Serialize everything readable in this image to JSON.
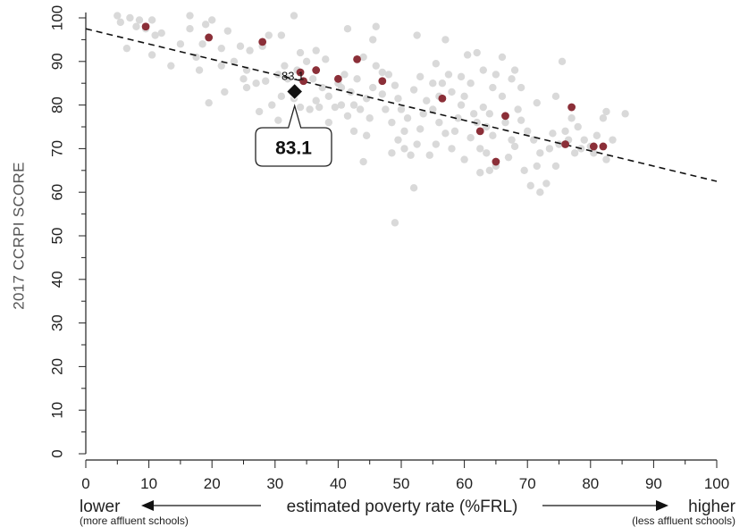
{
  "chart_data": {
    "type": "scatter",
    "ylabel": "2017 CCRPI SCORE",
    "xlabel": "estimated poverty rate (%FRL)",
    "x_low_label": "lower",
    "x_high_label": "higher",
    "x_low_sub": "(more affluent schools)",
    "x_high_sub": "(less affluent schools)",
    "xlim": [
      0,
      100
    ],
    "ylim": [
      0,
      100
    ],
    "x_ticks": [
      "0",
      "10",
      "20",
      "30",
      "40",
      "50",
      "60",
      "70",
      "80",
      "90",
      "100"
    ],
    "y_ticks": [
      "0",
      "10",
      "20",
      "30",
      "40",
      "50",
      "60",
      "70",
      "80",
      "90",
      "100"
    ],
    "grid": false,
    "colors": {
      "background_points": "#d9d9d9",
      "highlight_points": "#8b2f38",
      "trend_line": "#111111",
      "focus_marker": "#111111"
    },
    "trend_line": {
      "x": [
        0,
        100
      ],
      "y": [
        97.5,
        62.5
      ],
      "style": "dashed"
    },
    "background_points": [
      [
        5,
        100.5
      ],
      [
        7,
        100
      ],
      [
        8.5,
        99.5
      ],
      [
        10.5,
        99.5
      ],
      [
        5.5,
        99
      ],
      [
        8,
        98
      ],
      [
        9.5,
        97.5
      ],
      [
        11,
        96
      ],
      [
        6.5,
        93
      ],
      [
        10.5,
        91.5
      ],
      [
        13.5,
        89
      ],
      [
        16.5,
        100.5
      ],
      [
        20,
        99.5
      ],
      [
        19,
        98.5
      ],
      [
        16.5,
        97.5
      ],
      [
        22.5,
        97
      ],
      [
        18.5,
        94
      ],
      [
        21.5,
        93
      ],
      [
        15,
        94
      ],
      [
        17.5,
        91
      ],
      [
        18,
        88
      ],
      [
        21.5,
        89
      ],
      [
        23.5,
        90
      ],
      [
        26,
        92.5
      ],
      [
        24.5,
        93.5
      ],
      [
        28,
        93.5
      ],
      [
        29,
        96
      ],
      [
        31,
        96
      ],
      [
        33,
        100.5
      ],
      [
        25.5,
        88
      ],
      [
        25,
        86
      ],
      [
        25.5,
        84
      ],
      [
        27,
        85
      ],
      [
        28.5,
        85.5
      ],
      [
        30.5,
        87
      ],
      [
        31.5,
        89
      ],
      [
        33.5,
        88
      ],
      [
        35,
        90
      ],
      [
        36,
        86
      ],
      [
        37.5,
        84
      ],
      [
        36.5,
        81
      ],
      [
        35.5,
        79
      ],
      [
        34,
        79.5
      ],
      [
        33,
        81.5
      ],
      [
        38.5,
        82
      ],
      [
        39.5,
        79.5
      ],
      [
        40.5,
        84
      ],
      [
        41,
        87
      ],
      [
        41.5,
        97.5
      ],
      [
        44,
        91
      ],
      [
        43,
        86
      ],
      [
        42,
        83
      ],
      [
        42.5,
        80
      ],
      [
        41.5,
        77.5
      ],
      [
        43.5,
        79
      ],
      [
        44.5,
        81.5
      ],
      [
        45.5,
        84
      ],
      [
        46,
        89
      ],
      [
        46,
        98
      ],
      [
        48,
        87
      ],
      [
        47,
        82.5
      ],
      [
        45,
        77
      ],
      [
        44.5,
        73
      ],
      [
        47.5,
        79
      ],
      [
        48.5,
        76
      ],
      [
        49,
        84.5
      ],
      [
        49.5,
        81.5
      ],
      [
        50,
        79
      ],
      [
        51,
        77
      ],
      [
        50.5,
        74
      ],
      [
        49.5,
        72
      ],
      [
        48.5,
        69
      ],
      [
        50.5,
        70
      ],
      [
        51.5,
        68.5
      ],
      [
        52.5,
        71
      ],
      [
        53,
        74.5
      ],
      [
        53.5,
        78
      ],
      [
        54,
        81
      ],
      [
        52,
        83.5
      ],
      [
        53,
        86.5
      ],
      [
        55,
        85
      ],
      [
        55.5,
        89.5
      ],
      [
        56.5,
        85
      ],
      [
        57.5,
        87
      ],
      [
        56,
        82
      ],
      [
        55,
        79
      ],
      [
        56,
        76
      ],
      [
        57,
        73.5
      ],
      [
        55.5,
        71
      ],
      [
        54.5,
        68.5
      ],
      [
        58,
        70
      ],
      [
        58.5,
        74
      ],
      [
        59,
        77
      ],
      [
        59.5,
        80
      ],
      [
        58,
        83
      ],
      [
        59.5,
        86.5
      ],
      [
        60.5,
        91.5
      ],
      [
        61,
        85
      ],
      [
        60,
        82
      ],
      [
        61.5,
        78
      ],
      [
        62,
        76
      ],
      [
        61,
        72.5
      ],
      [
        60,
        67.5
      ],
      [
        62.5,
        70
      ],
      [
        63,
        79.5
      ],
      [
        63.5,
        75
      ],
      [
        64,
        78
      ],
      [
        64.5,
        84
      ],
      [
        65,
        87
      ],
      [
        64.5,
        73
      ],
      [
        63.5,
        69
      ],
      [
        65,
        66
      ],
      [
        64,
        65
      ],
      [
        62.5,
        64.5
      ],
      [
        66.5,
        76
      ],
      [
        67.5,
        72
      ],
      [
        68,
        70.5
      ],
      [
        67,
        68
      ],
      [
        66,
        82
      ],
      [
        67.5,
        86
      ],
      [
        69,
        76.5
      ],
      [
        70,
        74
      ],
      [
        71,
        72
      ],
      [
        72,
        69
      ],
      [
        70.5,
        61.5
      ],
      [
        72,
        60
      ],
      [
        73,
        62
      ],
      [
        71.5,
        66
      ],
      [
        73.5,
        70
      ],
      [
        74,
        73.5
      ],
      [
        75,
        71
      ],
      [
        76,
        74
      ],
      [
        77,
        77
      ],
      [
        75.5,
        90
      ],
      [
        74.5,
        82
      ],
      [
        76.5,
        72
      ],
      [
        77.5,
        69
      ],
      [
        78,
        75
      ],
      [
        79,
        72
      ],
      [
        80,
        70.5
      ],
      [
        81,
        73
      ],
      [
        82,
        77
      ],
      [
        82.5,
        78.5
      ],
      [
        83.5,
        72
      ],
      [
        82.5,
        67.5
      ],
      [
        85.5,
        78
      ],
      [
        69,
        84
      ],
      [
        71.5,
        80.5
      ],
      [
        68.5,
        79
      ],
      [
        63,
        88
      ],
      [
        52,
        61
      ],
      [
        49,
        53
      ],
      [
        40,
        85
      ],
      [
        38.5,
        76
      ],
      [
        44,
        67
      ],
      [
        40.5,
        80
      ],
      [
        42.5,
        74
      ],
      [
        47,
        87.5
      ],
      [
        37,
        79.5
      ],
      [
        31,
        82
      ],
      [
        29.5,
        80
      ],
      [
        27.5,
        78.5
      ],
      [
        30.5,
        76.5
      ],
      [
        32,
        86
      ],
      [
        34,
        92
      ],
      [
        36.5,
        92.5
      ],
      [
        38,
        90.5
      ],
      [
        22,
        83
      ],
      [
        19.5,
        80.5
      ],
      [
        12,
        96.5
      ],
      [
        57,
        95
      ],
      [
        66,
        91
      ],
      [
        62,
        92
      ],
      [
        45.5,
        95
      ],
      [
        52.5,
        96
      ],
      [
        68,
        88
      ],
      [
        78.5,
        70
      ],
      [
        80.5,
        69
      ],
      [
        74.5,
        66
      ],
      [
        69.5,
        65
      ]
    ],
    "highlight_points": [
      [
        9.5,
        98
      ],
      [
        19.5,
        95.5
      ],
      [
        28,
        94.5
      ],
      [
        34,
        87.5
      ],
      [
        34.5,
        85.5
      ],
      [
        36.5,
        88
      ],
      [
        40,
        86
      ],
      [
        43,
        90.5
      ],
      [
        47,
        85.5
      ],
      [
        56.5,
        81.5
      ],
      [
        62.5,
        74
      ],
      [
        65,
        67
      ],
      [
        66.5,
        77.5
      ],
      [
        76,
        71
      ],
      [
        77,
        79.5
      ],
      [
        80.5,
        70.5
      ],
      [
        82,
        70.5
      ]
    ],
    "focus_point": {
      "x": 33.1,
      "y": 83.1,
      "label": "83.1",
      "small_label": "83.1"
    }
  }
}
